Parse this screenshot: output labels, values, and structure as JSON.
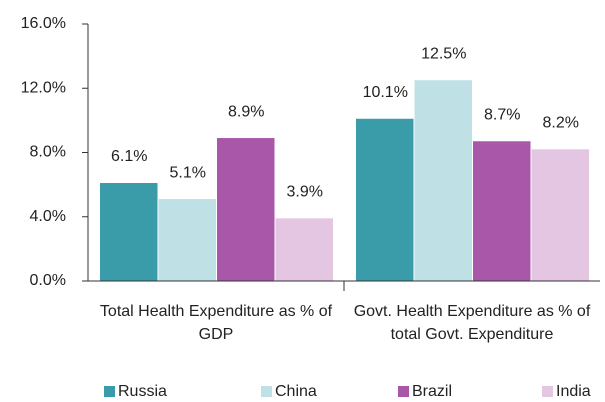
{
  "chart_data": {
    "type": "bar",
    "categories": [
      "Total Health Expenditure as % of GDP",
      "Govt. Health Expenditure as % of total Govt. Expenditure"
    ],
    "series": [
      {
        "name": "Russia",
        "color": "#3a9ca9",
        "values": [
          6.1,
          10.1
        ],
        "value_labels": [
          "6.1%",
          "10.1%"
        ]
      },
      {
        "name": "China",
        "color": "#bfe0e5",
        "values": [
          5.1,
          12.5
        ],
        "value_labels": [
          "5.1%",
          "12.5%"
        ]
      },
      {
        "name": "Brazil",
        "color": "#a957a8",
        "values": [
          8.9,
          8.7
        ],
        "value_labels": [
          "8.9%",
          "8.7%"
        ]
      },
      {
        "name": "India",
        "color": "#e4c6e3",
        "values": [
          3.9,
          8.2
        ],
        "value_labels": [
          "3.9%",
          "8.2%"
        ]
      }
    ],
    "ylim": [
      0,
      16
    ],
    "yticks": [
      {
        "value": 0,
        "label": "0.0%"
      },
      {
        "value": 4,
        "label": "4.0%"
      },
      {
        "value": 8,
        "label": "8.0%"
      },
      {
        "value": 12,
        "label": "12.0%"
      },
      {
        "value": 16,
        "label": "16.0%"
      }
    ],
    "grid": false,
    "legend": "bottom"
  }
}
